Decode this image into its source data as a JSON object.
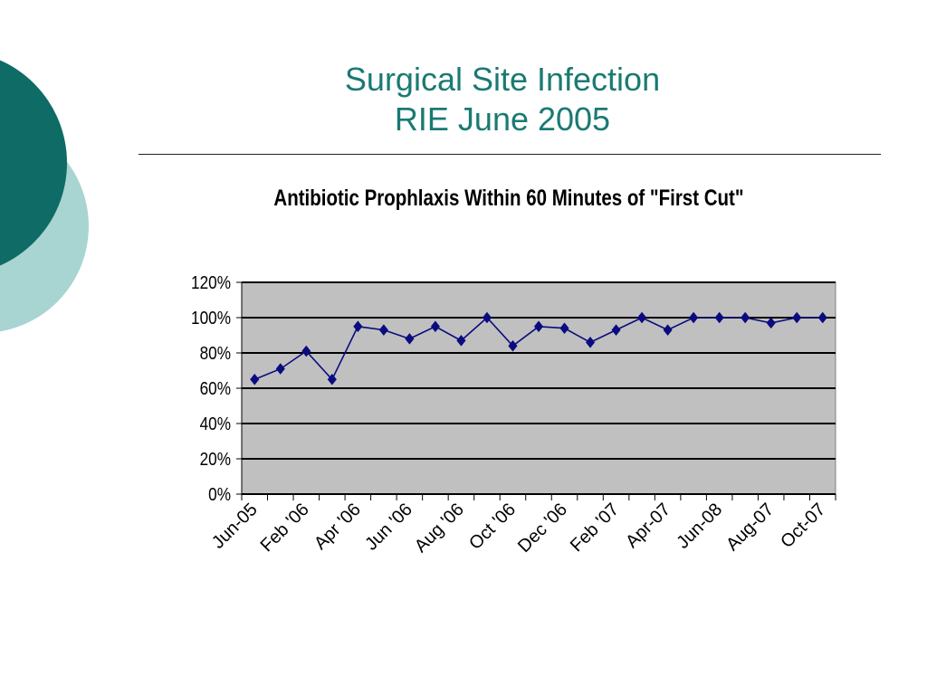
{
  "slide": {
    "title_line1": "Surgical Site Infection",
    "title_line2": "RIE June 2005"
  },
  "colors": {
    "accent_dark": "#0e6b66",
    "accent_light": "#a8d4d2",
    "title": "#1a7a73",
    "plot_bg": "#c0c0c0",
    "series": "#0b0b80"
  },
  "chart_data": {
    "type": "line",
    "title": "Antibiotic Prophlaxis Within 60 Minutes of \"First Cut\"",
    "xlabel": "",
    "ylabel": "",
    "ylim": [
      0,
      120
    ],
    "yticks": [
      "0%",
      "20%",
      "40%",
      "60%",
      "80%",
      "100%",
      "120%"
    ],
    "ytick_values": [
      0,
      20,
      40,
      60,
      80,
      100,
      120
    ],
    "grid": true,
    "legend": "none",
    "x_tick_labels": [
      "Jun-05",
      "Feb '06",
      "Apr '06",
      "Jun '06",
      "Aug '06",
      "Oct '06",
      "Dec '06",
      "Feb '07",
      "Apr-07",
      "Jun-08",
      "Aug-07",
      "Oct-07"
    ],
    "series": [
      {
        "marker": "diamond",
        "values": [
          65,
          71,
          81,
          65,
          95,
          93,
          88,
          95,
          87,
          100,
          84,
          95,
          94,
          86,
          93,
          100,
          93,
          100,
          100,
          100,
          97,
          100,
          100
        ]
      }
    ]
  }
}
